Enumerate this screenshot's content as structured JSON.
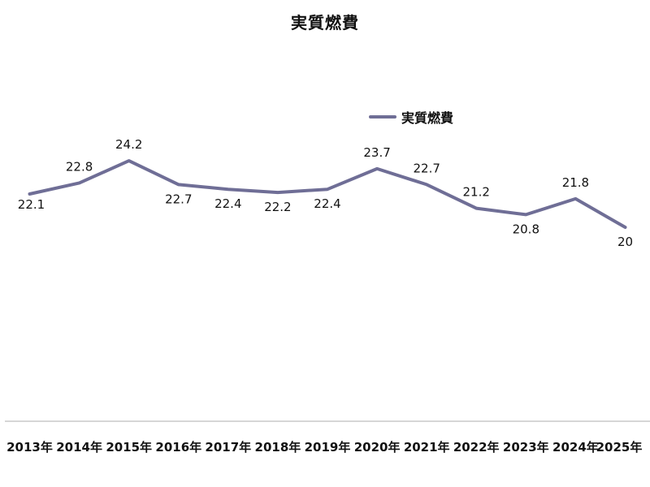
{
  "chart_data": {
    "type": "line",
    "title": "実質燃費",
    "xlabel": "",
    "ylabel": "",
    "categories": [
      "2013年",
      "2014年",
      "2015年",
      "2016年",
      "2017年",
      "2018年",
      "2019年",
      "2020年",
      "2021年",
      "2022年",
      "2023年",
      "2024年",
      "2025年"
    ],
    "series": [
      {
        "name": "実質燃費",
        "values": [
          22.1,
          22.8,
          24.2,
          22.7,
          22.4,
          22.2,
          22.4,
          23.7,
          22.7,
          21.2,
          20.8,
          21.8,
          20
        ],
        "color": "#6f6e96"
      }
    ],
    "data_labels": [
      "22.1",
      "22.8",
      "24.2",
      "22.7",
      "22.4",
      "22.2",
      "22.4",
      "23.7",
      "22.7",
      "21.2",
      "20.8",
      "21.8",
      "20"
    ],
    "ylim": [
      10,
      30
    ],
    "grid": false,
    "legend_position": "top-right",
    "axis_color": "#c8c8c8"
  }
}
